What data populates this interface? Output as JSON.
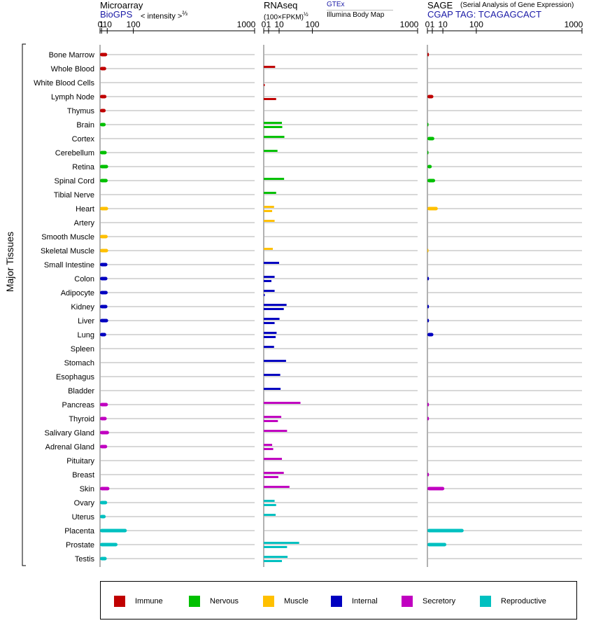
{
  "headers": {
    "microarray": {
      "title": "Microarray",
      "source": "BioGPS",
      "scale": "< intensity >",
      "scale_exp": "⅔"
    },
    "rnaseq": {
      "title": "RNAseq",
      "scale": "(100×FPKM)",
      "scale_exp": "½",
      "source_a": "GTEx",
      "source_b": "Illumina Body Map"
    },
    "sage": {
      "title": "SAGE",
      "subtitle": "(Serial Analysis of Gene Expression)",
      "tag": "CGAP TAG: TCAGAGCACT"
    }
  },
  "ylabel": "Major Tissues",
  "legend": [
    {
      "key": "immune",
      "label": "Immune"
    },
    {
      "key": "nervous",
      "label": "Nervous"
    },
    {
      "key": "muscle",
      "label": "Muscle"
    },
    {
      "key": "internal",
      "label": "Internal"
    },
    {
      "key": "secretory",
      "label": "Secretory"
    },
    {
      "key": "reproductive",
      "label": "Reproductive"
    }
  ],
  "colors": {
    "immune": "#c00000",
    "nervous": "#00c000",
    "muscle": "#ffc000",
    "internal": "#0000c0",
    "secretory": "#c000c0",
    "reproductive": "#00c0c0"
  },
  "chart_data": {
    "type": "bar",
    "orientation": "horizontal",
    "x_scale": "power",
    "ticks": [
      "0",
      "1",
      "10",
      "100",
      "1000"
    ],
    "tick_values": [
      0,
      1,
      10,
      100,
      1000
    ],
    "xlim": [
      0,
      1000
    ],
    "tissues": [
      {
        "name": "Bone Marrow",
        "system": "immune",
        "microarray": 10,
        "gtex": null,
        "ibm": null,
        "sage": 0.1
      },
      {
        "name": "Whole Blood",
        "system": "immune",
        "microarray": 8,
        "gtex": 5.5,
        "ibm": null,
        "sage": null
      },
      {
        "name": "White Blood Cells",
        "system": "immune",
        "microarray": null,
        "gtex": null,
        "ibm": 0.01,
        "sage": null
      },
      {
        "name": "Lymph Node",
        "system": "immune",
        "microarray": 8.5,
        "gtex": null,
        "ibm": 6.5,
        "sage": 1.5
      },
      {
        "name": "Thymus",
        "system": "immune",
        "microarray": 7,
        "gtex": null,
        "ibm": null,
        "sage": null
      },
      {
        "name": "Brain",
        "system": "nervous",
        "microarray": 7,
        "gtex": 14,
        "ibm": 14.5,
        "sage": 0.05
      },
      {
        "name": "Cortex",
        "system": "nervous",
        "microarray": null,
        "gtex": 18,
        "ibm": null,
        "sage": 2
      },
      {
        "name": "Cerebellum",
        "system": "nervous",
        "microarray": 9,
        "gtex": 8,
        "ibm": null,
        "sage": 0.05
      },
      {
        "name": "Retina",
        "system": "nervous",
        "microarray": 12,
        "gtex": null,
        "ibm": null,
        "sage": 0.8
      },
      {
        "name": "Spinal Cord",
        "system": "nervous",
        "microarray": 11,
        "gtex": 17.5,
        "ibm": null,
        "sage": 2.5
      },
      {
        "name": "Tibial Nerve",
        "system": "nervous",
        "microarray": null,
        "gtex": 6.5,
        "ibm": null,
        "sage": null
      },
      {
        "name": "Heart",
        "system": "muscle",
        "microarray": 12,
        "gtex": 4.5,
        "ibm": 3,
        "sage": 4.5
      },
      {
        "name": "Artery",
        "system": "muscle",
        "microarray": null,
        "gtex": 5,
        "ibm": null,
        "sage": null
      },
      {
        "name": "Smooth Muscle",
        "system": "muscle",
        "microarray": 11,
        "gtex": null,
        "ibm": null,
        "sage": null
      },
      {
        "name": "Skeletal Muscle",
        "system": "muscle",
        "microarray": 12,
        "gtex": 3.5,
        "ibm": null,
        "sage": 0.05
      },
      {
        "name": "Small Intestine",
        "system": "internal",
        "microarray": 10.5,
        "gtex": 10,
        "ibm": null,
        "sage": null
      },
      {
        "name": "Colon",
        "system": "internal",
        "microarray": 10.5,
        "gtex": 5,
        "ibm": 2.5,
        "sage": 0.1
      },
      {
        "name": "Adipocyte",
        "system": "internal",
        "microarray": 11,
        "gtex": 5,
        "ibm": 0.05,
        "sage": null
      },
      {
        "name": "Kidney",
        "system": "internal",
        "microarray": 10.5,
        "gtex": 22,
        "ibm": 17,
        "sage": 0.1
      },
      {
        "name": "Liver",
        "system": "internal",
        "microarray": 12,
        "gtex": 10.5,
        "ibm": 5,
        "sage": 0.1
      },
      {
        "name": "Lung",
        "system": "internal",
        "microarray": 8,
        "gtex": 7,
        "ibm": 6,
        "sage": 1.5
      },
      {
        "name": "Spleen",
        "system": "internal",
        "microarray": null,
        "gtex": 4.5,
        "ibm": null,
        "sage": null
      },
      {
        "name": "Stomach",
        "system": "internal",
        "microarray": null,
        "gtex": 21,
        "ibm": null,
        "sage": null
      },
      {
        "name": "Esophagus",
        "system": "internal",
        "microarray": null,
        "gtex": 11.5,
        "ibm": null,
        "sage": null
      },
      {
        "name": "Bladder",
        "system": "internal",
        "microarray": null,
        "gtex": 12,
        "ibm": null,
        "sage": null
      },
      {
        "name": "Pancreas",
        "system": "secretory",
        "microarray": 11.5,
        "gtex": 57,
        "ibm": null,
        "sage": 0.1
      },
      {
        "name": "Thyroid",
        "system": "secretory",
        "microarray": 9,
        "gtex": 13,
        "ibm": 8.5,
        "sage": 0.1
      },
      {
        "name": "Salivary Gland",
        "system": "secretory",
        "microarray": 14,
        "gtex": 23,
        "ibm": null,
        "sage": null
      },
      {
        "name": "Adrenal Gland",
        "system": "secretory",
        "microarray": 10,
        "gtex": 3,
        "ibm": 3.8,
        "sage": null
      },
      {
        "name": "Pituitary",
        "system": "secretory",
        "microarray": null,
        "gtex": 14,
        "ibm": null,
        "sage": null
      },
      {
        "name": "Breast",
        "system": "secretory",
        "microarray": null,
        "gtex": 17,
        "ibm": 9,
        "sage": 0.1
      },
      {
        "name": "Skin",
        "system": "secretory",
        "microarray": 15,
        "gtex": 28,
        "ibm": null,
        "sage": 12
      },
      {
        "name": "Ovary",
        "system": "reproductive",
        "microarray": 10,
        "gtex": 5,
        "ibm": 6.5,
        "sage": null
      },
      {
        "name": "Uterus",
        "system": "reproductive",
        "microarray": 7,
        "gtex": 6,
        "ibm": null,
        "sage": null
      },
      {
        "name": "Placenta",
        "system": "reproductive",
        "microarray": 72,
        "gtex": null,
        "ibm": null,
        "sage": 55
      },
      {
        "name": "Prostate",
        "system": "reproductive",
        "microarray": 38,
        "gtex": 53,
        "ibm": 23,
        "sage": 15
      },
      {
        "name": "Testis",
        "system": "reproductive",
        "microarray": 9,
        "gtex": 24,
        "ibm": 14,
        "sage": null
      }
    ]
  }
}
